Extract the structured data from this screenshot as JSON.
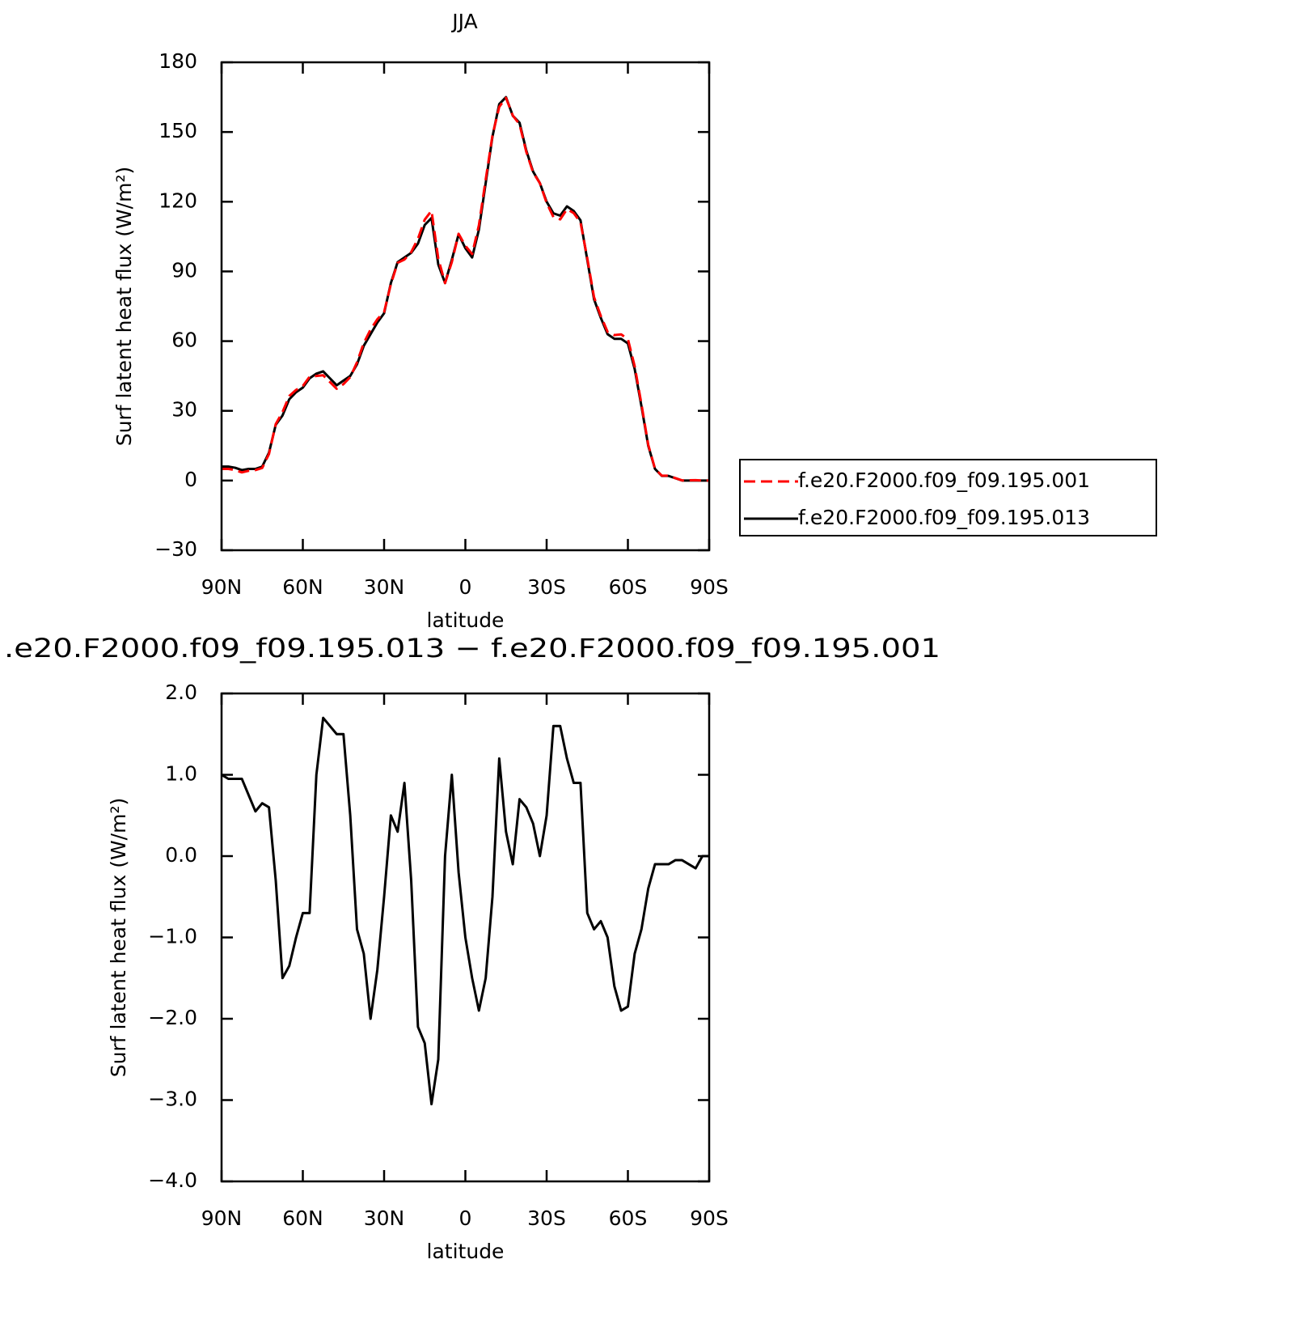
{
  "chart_data": [
    {
      "type": "line",
      "title": "JJA",
      "xlabel": "latitude",
      "ylabel": "Surf latent heat flux (W/m²)",
      "x": [
        90,
        87.5,
        85,
        82.5,
        80,
        77.5,
        75,
        72.5,
        70,
        67.5,
        65,
        62.5,
        60,
        57.5,
        55,
        52.5,
        50,
        47.5,
        45,
        42.5,
        40,
        37.5,
        35,
        32.5,
        30,
        27.5,
        25,
        22.5,
        20,
        17.5,
        15,
        12.5,
        10,
        7.5,
        5,
        2.5,
        0,
        -2.5,
        -5,
        -7.5,
        -10,
        -12.5,
        -15,
        -17.5,
        -20,
        -22.5,
        -25,
        -27.5,
        -30,
        -32.5,
        -35,
        -37.5,
        -40,
        -42.5,
        -45,
        -47.5,
        -50,
        -52.5,
        -55,
        -57.5,
        -60,
        -62.5,
        -65,
        -67.5,
        -70,
        -72.5,
        -75,
        -77.5,
        -80,
        -82.5,
        -85,
        -87.5,
        -90
      ],
      "series": [
        {
          "name": "f.e20.F2000.f09_f09.195.001",
          "color": "#ff0000",
          "dashed": true,
          "values": [
            5,
            5,
            4.5,
            3.5,
            4.2,
            4.5,
            5.4,
            11.4,
            24.3,
            29.5,
            36.4,
            39,
            40.7,
            44.7,
            45,
            45.3,
            42.4,
            39.5,
            41.5,
            44.5,
            50.9,
            59.2,
            65,
            69.4,
            72.5,
            84.5,
            93.7,
            95.1,
            98.3,
            104.1,
            112.3,
            116.1,
            95.5,
            85,
            94,
            106.2,
            101,
            97.5,
            109.9,
            129.5,
            148.5,
            160.8,
            164.7,
            157.1,
            153.3,
            141.4,
            132.6,
            128,
            119.5,
            113.4,
            112.4,
            116.8,
            115.1,
            111.1,
            95.7,
            78.9,
            70.8,
            64,
            62.6,
            62.9,
            60.85,
            49.2,
            32.9,
            15.4,
            5.1,
            2.1,
            2.1,
            1.05,
            0.05,
            0.1,
            0.15,
            0,
            0
          ]
        },
        {
          "name": "f.e20.F2000.f09_f09.195.013",
          "color": "#000000",
          "dashed": false,
          "values": [
            6,
            6,
            5.5,
            4.5,
            5,
            5,
            6,
            12,
            24,
            28,
            35,
            38,
            40,
            44,
            46,
            47,
            44,
            41,
            43,
            45,
            50,
            58,
            63,
            68,
            72,
            85,
            94,
            96,
            98,
            102,
            110,
            113,
            93,
            85,
            95,
            106,
            100,
            96,
            108,
            128,
            148,
            162,
            165,
            157,
            154,
            142,
            133,
            128,
            120,
            115,
            114,
            118,
            116,
            112,
            95,
            78,
            70,
            63,
            61,
            61,
            59,
            48,
            32,
            15,
            5,
            2,
            2,
            1,
            0,
            0,
            0,
            0,
            0
          ]
        }
      ],
      "xlim": [
        90,
        -90
      ],
      "xticks": [
        {
          "value": 90,
          "label": "90N"
        },
        {
          "value": 60,
          "label": "60N"
        },
        {
          "value": 30,
          "label": "30N"
        },
        0,
        {
          "value": -30,
          "label": "30S"
        },
        {
          "value": -60,
          "label": "60S"
        },
        {
          "value": -90,
          "label": "90S"
        }
      ],
      "ylim": [
        -30,
        180
      ],
      "yticks": [
        {
          "value": -30,
          "label": "−30"
        },
        0,
        30,
        60,
        90,
        120,
        150,
        180
      ],
      "legend": "right"
    },
    {
      "type": "line",
      "title": ".e20.F2000.f09_f09.195.013 − f.e20.F2000.f09_f09.195.001",
      "xlabel": "latitude",
      "ylabel": "Surf latent heat flux (W/m²)",
      "x": [
        90,
        87.5,
        85,
        82.5,
        80,
        77.5,
        75,
        72.5,
        70,
        67.5,
        65,
        62.5,
        60,
        57.5,
        55,
        52.5,
        50,
        47.5,
        45,
        42.5,
        40,
        37.5,
        35,
        32.5,
        30,
        27.5,
        25,
        22.5,
        20,
        17.5,
        15,
        12.5,
        10,
        7.5,
        5,
        2.5,
        0,
        -2.5,
        -5,
        -7.5,
        -10,
        -12.5,
        -15,
        -17.5,
        -20,
        -22.5,
        -25,
        -27.5,
        -30,
        -32.5,
        -35,
        -37.5,
        -40,
        -42.5,
        -45,
        -47.5,
        -50,
        -52.5,
        -55,
        -57.5,
        -60,
        -62.5,
        -65,
        -67.5,
        -70,
        -72.5,
        -75,
        -77.5,
        -80,
        -82.5,
        -85,
        -87.5,
        -90
      ],
      "values": [
        1,
        0.95,
        0.95,
        0.95,
        0.75,
        0.55,
        0.65,
        0.6,
        -0.3,
        -1.5,
        -1.35,
        -1,
        -0.7,
        -0.7,
        1,
        1.7,
        1.6,
        1.5,
        1.5,
        0.5,
        -0.9,
        -1.2,
        -2,
        -1.4,
        -0.5,
        0.5,
        0.3,
        0.9,
        -0.3,
        -2.1,
        -2.3,
        -3.05,
        -2.5,
        0,
        1,
        -0.2,
        -1,
        -1.5,
        -1.9,
        -1.5,
        -0.5,
        1.2,
        0.3,
        -0.1,
        0.7,
        0.6,
        0.4,
        0,
        0.5,
        1.6,
        1.6,
        1.2,
        0.9,
        0.9,
        -0.7,
        -0.9,
        -0.8,
        -1,
        -1.6,
        -1.9,
        -1.85,
        -1.2,
        -0.9,
        -0.4,
        -0.1,
        -0.1,
        -0.1,
        -0.05,
        -0.05,
        -0.1,
        -0.15,
        0,
        0
      ],
      "color": "#000000",
      "xlim": [
        90,
        -90
      ],
      "xticks": [
        {
          "value": 90,
          "label": "90N"
        },
        {
          "value": 60,
          "label": "60N"
        },
        {
          "value": 30,
          "label": "30N"
        },
        0,
        {
          "value": -30,
          "label": "30S"
        },
        {
          "value": -60,
          "label": "60S"
        },
        {
          "value": -90,
          "label": "90S"
        }
      ],
      "ylim": [
        -4,
        2
      ],
      "yticks": [
        {
          "value": -4,
          "label": "−4.0"
        },
        {
          "value": -3,
          "label": "−3.0"
        },
        {
          "value": -2,
          "label": "−2.0"
        },
        {
          "value": -1,
          "label": "−1.0"
        },
        {
          "value": 0,
          "label": "0.0"
        },
        {
          "value": 1,
          "label": "1.0"
        },
        {
          "value": 2,
          "label": "2.0"
        }
      ]
    }
  ]
}
